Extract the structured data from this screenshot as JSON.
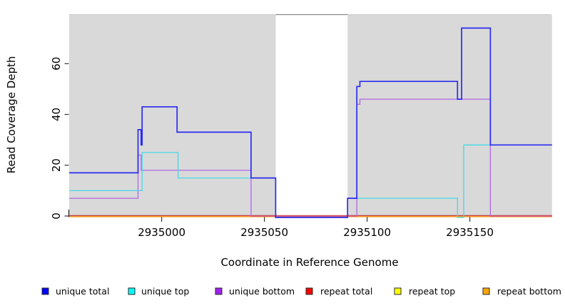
{
  "chart_data": {
    "type": "line",
    "step": true,
    "title": "",
    "xlabel": "Coordinate in Reference Genome",
    "ylabel": "Read Coverage Depth",
    "x_range": [
      2934955,
      2935190
    ],
    "y_range": [
      0,
      79
    ],
    "x_ticks": [
      2935000,
      2935050,
      2935100,
      2935150
    ],
    "x_tick_labels": [
      "2935000",
      "2935050",
      "2935100",
      "2935150"
    ],
    "y_ticks": [
      0,
      20,
      40,
      60
    ],
    "y_tick_labels": [
      "0",
      "20",
      "40",
      "60"
    ],
    "grid": false,
    "legend_position": "bottom",
    "plot_background": "#ffffff",
    "shaded_regions": {
      "color": "#d9d9d9",
      "ranges": [
        [
          2934955,
          2935055.5
        ],
        [
          2935090.5,
          2935190
        ]
      ]
    },
    "series": [
      {
        "name": "unique total",
        "color": "#0000ff",
        "line_color": "#2b2bee",
        "points": [
          [
            2934955,
            17
          ],
          [
            2934988.5,
            34
          ],
          [
            2934990,
            28
          ],
          [
            2934990.5,
            43
          ],
          [
            2935007.5,
            33
          ],
          [
            2935043.5,
            15
          ],
          [
            2935055.5,
            0
          ],
          [
            2935090.5,
            7
          ],
          [
            2935095,
            51
          ],
          [
            2935096.5,
            53
          ],
          [
            2935144,
            46
          ],
          [
            2935146,
            74
          ],
          [
            2935160,
            28
          ]
        ]
      },
      {
        "name": "unique top",
        "color": "#00ffff",
        "line_color": "#45d9e6",
        "points": [
          [
            2934955,
            10
          ],
          [
            2934990.5,
            25
          ],
          [
            2935008,
            15
          ],
          [
            2935055.5,
            0
          ],
          [
            2935090.5,
            7
          ],
          [
            2935144,
            0
          ],
          [
            2935147,
            28
          ]
        ]
      },
      {
        "name": "unique bottom",
        "color": "#a020f0",
        "line_color": "#b066e8",
        "points": [
          [
            2934955,
            7
          ],
          [
            2934988.5,
            24
          ],
          [
            2934990,
            18
          ],
          [
            2935043.5,
            0
          ],
          [
            2935095,
            44
          ],
          [
            2935096.5,
            46
          ],
          [
            2935160,
            0
          ]
        ]
      },
      {
        "name": "repeat total",
        "color": "#ff0000",
        "line_color": "#c64040",
        "points": [
          [
            2934955,
            0
          ]
        ]
      },
      {
        "name": "repeat top",
        "color": "#ffff00",
        "line_color": "#f2e24a",
        "points": [
          [
            2934955,
            0
          ]
        ]
      },
      {
        "name": "repeat bottom",
        "color": "#ffa500",
        "line_color": "#ff9e1b",
        "points": [
          [
            2934955,
            0
          ]
        ]
      }
    ],
    "legend": [
      "unique total",
      "unique top",
      "unique bottom",
      "repeat total",
      "repeat top",
      "repeat bottom"
    ],
    "zero_overlay_color": "#d4547e"
  }
}
